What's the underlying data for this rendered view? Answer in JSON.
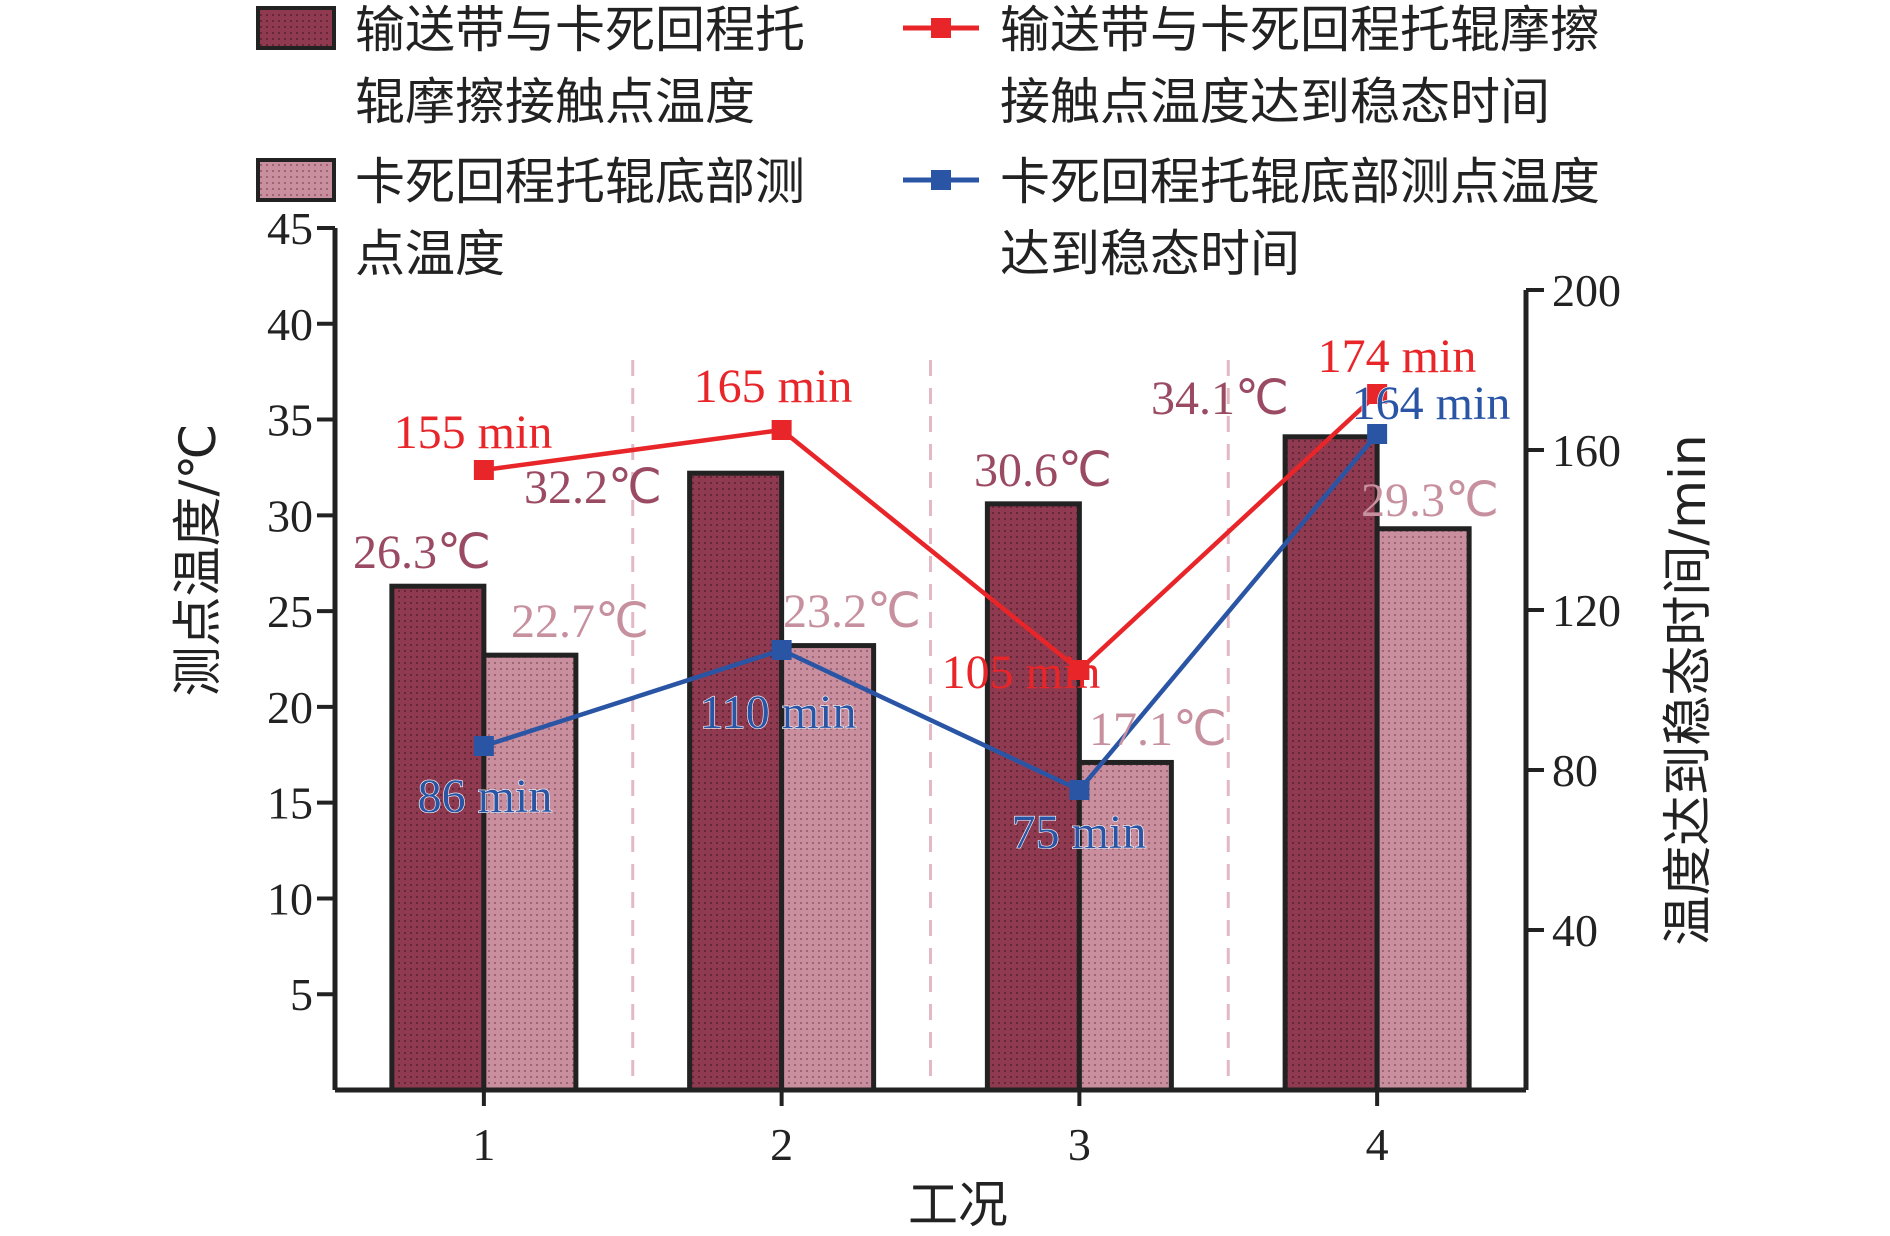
{
  "chart_data": {
    "type": "bar",
    "categories": [
      "1",
      "2",
      "3",
      "4"
    ],
    "xlabel": "工况",
    "ylabel": "测点温度/℃",
    "y2label": "温度达到稳态时间/min",
    "ylim": [
      0,
      45
    ],
    "y_ticks": [
      "5",
      "10",
      "15",
      "20",
      "25",
      "30",
      "35",
      "40",
      "45"
    ],
    "y2lim": [
      0,
      200
    ],
    "y2_ticks": [
      "40",
      "80",
      "120",
      "160",
      "200"
    ],
    "legend_placement": "top",
    "bar_series": [
      {
        "name": "输送带与卡死回程托辊摩擦接触点温度",
        "legend_lines": [
          "输送带与卡死回程托",
          "辊摩擦接触点温度"
        ],
        "color": "#8f3a50",
        "values": [
          26.3,
          32.2,
          30.6,
          34.1
        ],
        "labels": [
          "26.3℃",
          "32.2℃",
          "30.6℃",
          "34.1℃"
        ],
        "label_color": "#9b4a63"
      },
      {
        "name": "卡死回程托辊底部测点温度",
        "legend_lines": [
          "卡死回程托辊底部测",
          "点温度"
        ],
        "color": "#c98f9e",
        "values": [
          22.7,
          23.2,
          17.1,
          29.3
        ],
        "labels": [
          "22.7℃",
          "23.2℃",
          "17.1℃",
          "29.3℃"
        ],
        "label_color": "#c7909f"
      }
    ],
    "line_series": [
      {
        "name": "输送带与卡死回程托辊摩擦接触点温度达到稳态时间",
        "legend_lines": [
          "输送带与卡死回程托辊摩擦",
          "接触点温度达到稳态时间"
        ],
        "color": "#e8262a",
        "values": [
          155,
          165,
          105,
          174
        ],
        "labels": [
          "155 min",
          "165 min",
          "105 min",
          "174 min"
        ]
      },
      {
        "name": "卡死回程托辊底部测点温度达到稳态时间",
        "legend_lines": [
          "卡死回程托辊底部测点温度",
          "达到稳态时间"
        ],
        "color": "#2a55a5",
        "values": [
          86,
          110,
          75,
          164
        ],
        "labels": [
          "86 min",
          "110 min",
          "75 min",
          "164 min"
        ]
      }
    ],
    "grid": false
  }
}
